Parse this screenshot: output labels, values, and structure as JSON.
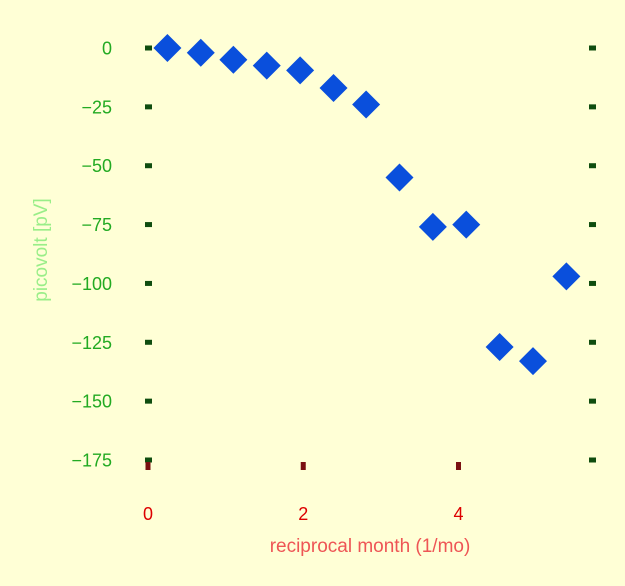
{
  "chart_data": {
    "type": "scatter",
    "title": "",
    "xlabel": "reciprocal month (1/mo)",
    "ylabel": "picovolt [pV]",
    "xlim": [
      0,
      5.72
    ],
    "ylim": [
      -175,
      0
    ],
    "x_ticks": [
      0,
      2,
      4
    ],
    "x_tick_labels": [
      "0",
      "2",
      "4"
    ],
    "y_ticks": [
      0,
      -25,
      -50,
      -75,
      -100,
      -125,
      -150,
      -175
    ],
    "y_tick_labels": [
      "0",
      "−25",
      "−50",
      "−75",
      "−100",
      "−125",
      "−150",
      "−175"
    ],
    "grid": false,
    "legend": "none",
    "series": [
      {
        "marker": "diamond",
        "color": "#0a4fdc",
        "points": [
          {
            "x": 0.25,
            "y": 0
          },
          {
            "x": 0.68,
            "y": -2
          },
          {
            "x": 1.1,
            "y": -5
          },
          {
            "x": 1.53,
            "y": -7.5
          },
          {
            "x": 1.96,
            "y": -9.5
          },
          {
            "x": 2.39,
            "y": -17
          },
          {
            "x": 2.81,
            "y": -24
          },
          {
            "x": 3.24,
            "y": -55
          },
          {
            "x": 3.67,
            "y": -76
          },
          {
            "x": 4.1,
            "y": -75
          },
          {
            "x": 4.53,
            "y": -127
          },
          {
            "x": 4.96,
            "y": -133
          },
          {
            "x": 5.39,
            "y": -97
          }
        ]
      }
    ],
    "colors": {
      "background": "#ffffd6",
      "y_tick_labels": "#22aa22",
      "y_tick_marks": "#0f4d0f",
      "x_tick_labels": "#dd0000",
      "x_tick_marks": "#7a1010",
      "xlabel": "#ee5555",
      "ylabel": "#99ee88",
      "marker": "#0a4fdc"
    }
  }
}
